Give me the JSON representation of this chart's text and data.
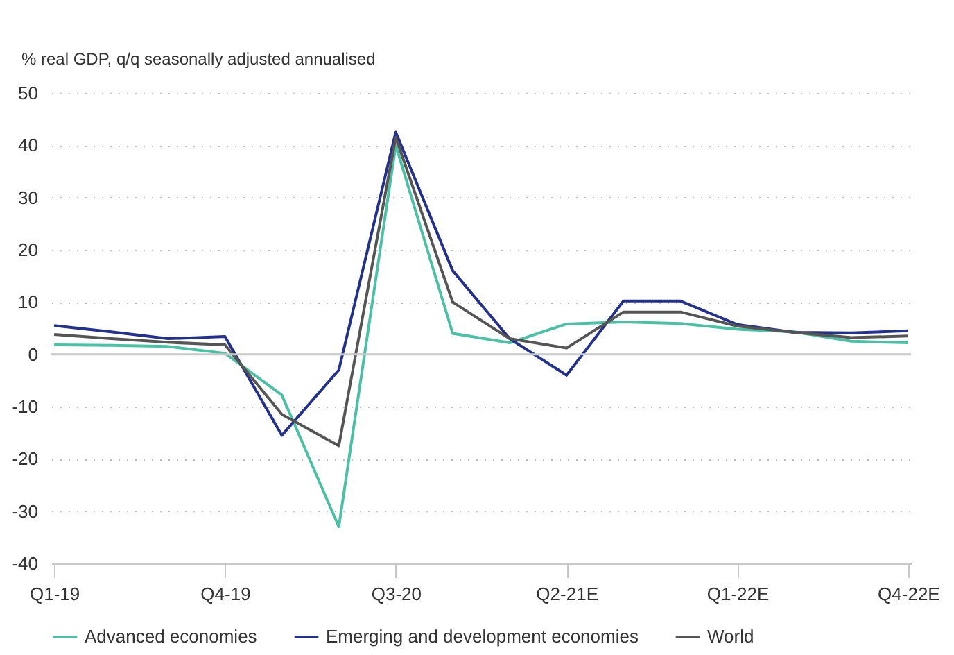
{
  "chart_data": {
    "type": "line",
    "ylabel": "% real GDP, q/q seasonally adjusted annualised",
    "categories": [
      "Q1-19",
      null,
      null,
      "Q4-19",
      null,
      null,
      "Q3-20",
      null,
      null,
      "Q2-21E",
      null,
      null,
      "Q1-22E",
      null,
      null,
      "Q4-22E"
    ],
    "series": [
      {
        "name": "Advanced economies",
        "color": "#4dbfa5",
        "values": [
          1.8,
          1.7,
          1.5,
          0.2,
          -7.8,
          -33,
          40,
          4,
          2.2,
          5.8,
          6.2,
          5.9,
          4.8,
          4.3,
          2.5,
          2.2
        ]
      },
      {
        "name": "Emerging and development economies",
        "color": "#24318a",
        "values": [
          5.5,
          4.3,
          3.0,
          3.4,
          -15.5,
          -3,
          42.5,
          16,
          3,
          -4,
          10.2,
          10.2,
          5.7,
          4.2,
          4.1,
          4.5
        ]
      },
      {
        "name": "World",
        "color": "#555555",
        "values": [
          3.8,
          3.0,
          2.3,
          1.8,
          -11.5,
          -17.5,
          41.5,
          10,
          3,
          1.2,
          8.1,
          8.1,
          5.4,
          4.2,
          3.2,
          3.5
        ]
      }
    ],
    "ylim": [
      -40,
      50
    ],
    "yticks": [
      -40,
      -30,
      -20,
      -10,
      0,
      10,
      20,
      30,
      40,
      50
    ],
    "grid": "y",
    "legend": "bottom",
    "marker": "none",
    "line_style": "solid",
    "ref_lines": [
      {
        "axis": "y",
        "value": 0,
        "label": null,
        "color": "#c8c8c8"
      }
    ]
  }
}
